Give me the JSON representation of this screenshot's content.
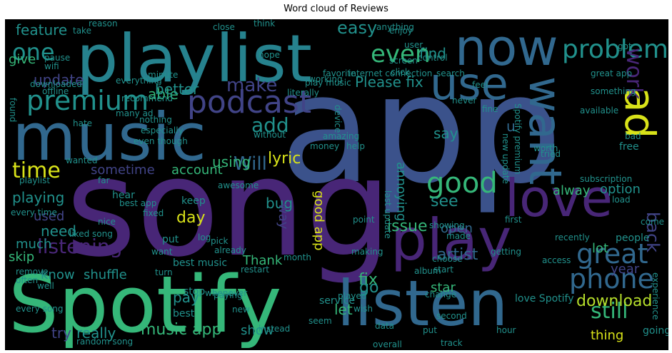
{
  "title": "Word cloud of Reviews",
  "palette": {
    "purple": "#482677",
    "darkpurple": "#3e1c5a",
    "blue": "#3b528b",
    "indigo": "#414487",
    "slate": "#31688e",
    "teal": "#21918c",
    "cyan": "#26828e",
    "green": "#35b779",
    "lime": "#6ece58",
    "yellow": "#d8e219",
    "gold": "#b5de2b"
  },
  "words": [
    "app",
    "song",
    "Spotify",
    "playlist",
    "music",
    "listen",
    "now",
    "use",
    "love",
    "play",
    "want",
    "ad",
    "podcast",
    "premium",
    "good",
    "great",
    "phone",
    "problem",
    "even",
    "one",
    "time",
    "Will",
    "add",
    "make",
    "work",
    "still",
    "download",
    "listening",
    "lyric",
    "back",
    "artist",
    "issue",
    "fix",
    "able",
    "update",
    "feature",
    "give",
    "find",
    "easy",
    "better",
    "Please fix",
    "using",
    "account",
    "sometime",
    "playing",
    "need",
    "much",
    "skip",
    "day",
    "used",
    "bug",
    "see",
    "say",
    "u",
    "annoying",
    "good app",
    "option",
    "alway",
    "year",
    "lot",
    "open",
    "let",
    "go",
    "thing",
    "going",
    "really",
    "music app",
    "show",
    "pay",
    "try",
    "know",
    "shuffle",
    "Thank",
    "star",
    "best music",
    "service",
    "stop",
    "way",
    "keep",
    "hear",
    "best app",
    "fixed",
    "put",
    "turn",
    "best",
    "whenever",
    "new",
    "seem",
    "instead",
    "restart",
    "paying",
    "month",
    "album",
    "change",
    "played",
    "second",
    "hour",
    "love Spotify",
    "recently",
    "people",
    "come",
    "start",
    "choose",
    "made",
    "getting",
    "experience",
    "great app",
    "something",
    "available",
    "free",
    "bad",
    "load",
    "subscription",
    "tried",
    "new update",
    "Spotify premium",
    "amazing",
    "without",
    "money",
    "help",
    "working",
    "search",
    "control",
    "enjoy",
    "got",
    "hope",
    "close",
    "think",
    "reason",
    "take",
    "everything",
    "minute",
    "offline",
    "pause",
    "recommend",
    "nothing",
    "many ad",
    "hate",
    "liked song",
    "nice",
    "log",
    "well",
    "every song",
    "every time",
    "random song",
    "device",
    "last update",
    "playlist",
    "far",
    "awesome",
    "never",
    "feel",
    "literally",
    "play music",
    "favorite",
    "internet connection",
    "screen",
    "user",
    "anything",
    "click",
    "wifi",
    "downloaded",
    "especially",
    "even though",
    "found",
    "fine",
    "first",
    "worth",
    "access",
    "wanted",
    "point",
    "showing",
    "making",
    "remove",
    "often",
    "want",
    "already",
    "pick",
    "wish",
    "data",
    "track",
    "put",
    "overall"
  ]
}
